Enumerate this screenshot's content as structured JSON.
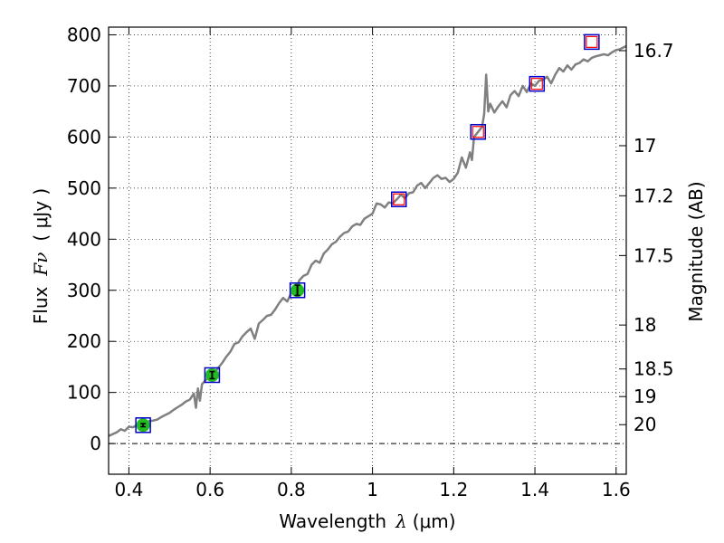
{
  "chart_data": {
    "type": "line",
    "xlabel_prefix": "Wavelength",
    "xlabel_symbol": "λ",
    "xlabel_unit": "(μm)",
    "ylabel_prefix": "Flux",
    "ylabel_symbol": "Fν",
    "ylabel_unit": "( μJy )",
    "y2label": "Magnitude (AB)",
    "xlim": [
      0.35,
      1.625
    ],
    "ylim": [
      -60,
      815
    ],
    "grid": true,
    "x_ticks": [
      0.4,
      0.6,
      0.8,
      1.0,
      1.2,
      1.4,
      1.6
    ],
    "x_tick_labels": [
      "0.4",
      "0.6",
      "0.8",
      "1",
      "1.2",
      "1.4",
      "1.6"
    ],
    "y_ticks": [
      0,
      100,
      200,
      300,
      400,
      500,
      600,
      700,
      800
    ],
    "y_tick_labels": [
      "0",
      "100",
      "200",
      "300",
      "400",
      "500",
      "600",
      "700",
      "800"
    ],
    "y2_ticks": [
      {
        "label": "16.7",
        "flux": 769
      },
      {
        "label": "17",
        "flux": 583
      },
      {
        "label": "17.2",
        "flux": 485
      },
      {
        "label": "17.5",
        "flux": 368
      },
      {
        "label": "18",
        "flux": 232
      },
      {
        "label": "18.5",
        "flux": 146
      },
      {
        "label": "19",
        "flux": 92
      },
      {
        "label": "20",
        "flux": 37
      }
    ],
    "series": [
      {
        "kind": "spectrum",
        "color": "#808080",
        "x": [
          0.35,
          0.37,
          0.38,
          0.39,
          0.4,
          0.41,
          0.42,
          0.43,
          0.44,
          0.45,
          0.46,
          0.47,
          0.48,
          0.49,
          0.5,
          0.51,
          0.52,
          0.53,
          0.54,
          0.55,
          0.56,
          0.565,
          0.57,
          0.575,
          0.58,
          0.59,
          0.6,
          0.61,
          0.62,
          0.63,
          0.64,
          0.65,
          0.66,
          0.67,
          0.68,
          0.69,
          0.7,
          0.71,
          0.72,
          0.73,
          0.74,
          0.75,
          0.76,
          0.77,
          0.78,
          0.79,
          0.8,
          0.81,
          0.82,
          0.83,
          0.84,
          0.85,
          0.86,
          0.87,
          0.88,
          0.89,
          0.9,
          0.91,
          0.92,
          0.93,
          0.94,
          0.95,
          0.96,
          0.97,
          0.98,
          0.99,
          1.0,
          1.01,
          1.02,
          1.03,
          1.04,
          1.05,
          1.06,
          1.07,
          1.08,
          1.09,
          1.1,
          1.11,
          1.12,
          1.13,
          1.14,
          1.15,
          1.16,
          1.17,
          1.18,
          1.19,
          1.2,
          1.21,
          1.22,
          1.23,
          1.24,
          1.245,
          1.25,
          1.26,
          1.27,
          1.275,
          1.28,
          1.285,
          1.29,
          1.3,
          1.31,
          1.32,
          1.33,
          1.34,
          1.35,
          1.36,
          1.37,
          1.38,
          1.39,
          1.4,
          1.41,
          1.42,
          1.43,
          1.44,
          1.45,
          1.46,
          1.47,
          1.48,
          1.49,
          1.5,
          1.51,
          1.52,
          1.53,
          1.54,
          1.55,
          1.56,
          1.57,
          1.58,
          1.59,
          1.6,
          1.61,
          1.625
        ],
        "y": [
          15,
          22,
          28,
          25,
          33,
          32,
          36,
          38,
          36,
          44,
          45,
          47,
          52,
          56,
          60,
          66,
          71,
          76,
          82,
          86,
          98,
          70,
          108,
          84,
          116,
          125,
          133,
          138,
          148,
          158,
          170,
          180,
          195,
          198,
          210,
          218,
          225,
          205,
          235,
          242,
          250,
          252,
          262,
          275,
          285,
          278,
          295,
          300,
          320,
          328,
          332,
          350,
          358,
          354,
          372,
          380,
          390,
          395,
          405,
          412,
          415,
          425,
          430,
          428,
          440,
          445,
          450,
          470,
          468,
          462,
          472,
          470,
          478,
          487,
          480,
          490,
          492,
          505,
          510,
          500,
          510,
          520,
          525,
          518,
          520,
          512,
          518,
          530,
          560,
          540,
          570,
          555,
          600,
          610,
          620,
          645,
          722,
          650,
          665,
          648,
          660,
          670,
          658,
          682,
          690,
          680,
          700,
          688,
          705,
          700,
          710,
          712,
          718,
          705,
          722,
          735,
          728,
          740,
          732,
          742,
          745,
          752,
          748,
          755,
          758,
          760,
          762,
          760,
          766,
          770,
          772,
          778
        ]
      },
      {
        "kind": "observed_photometry",
        "color": "#22bb22",
        "x": [
          0.435,
          0.605,
          0.815
        ],
        "y": [
          36,
          134,
          300
        ],
        "yerr": [
          3,
          7,
          10
        ]
      },
      {
        "kind": "model_photometry",
        "color": "#0000cc",
        "x": [
          0.435,
          0.605,
          0.815,
          1.065,
          1.26,
          1.405,
          1.54
        ],
        "y": [
          36,
          134,
          300,
          478,
          610,
          704,
          786
        ]
      },
      {
        "kind": "upper_limits",
        "color": "#ff0000",
        "x": [
          1.065,
          1.26,
          1.405,
          1.54
        ],
        "y": [
          478,
          610,
          704,
          786
        ]
      }
    ]
  }
}
